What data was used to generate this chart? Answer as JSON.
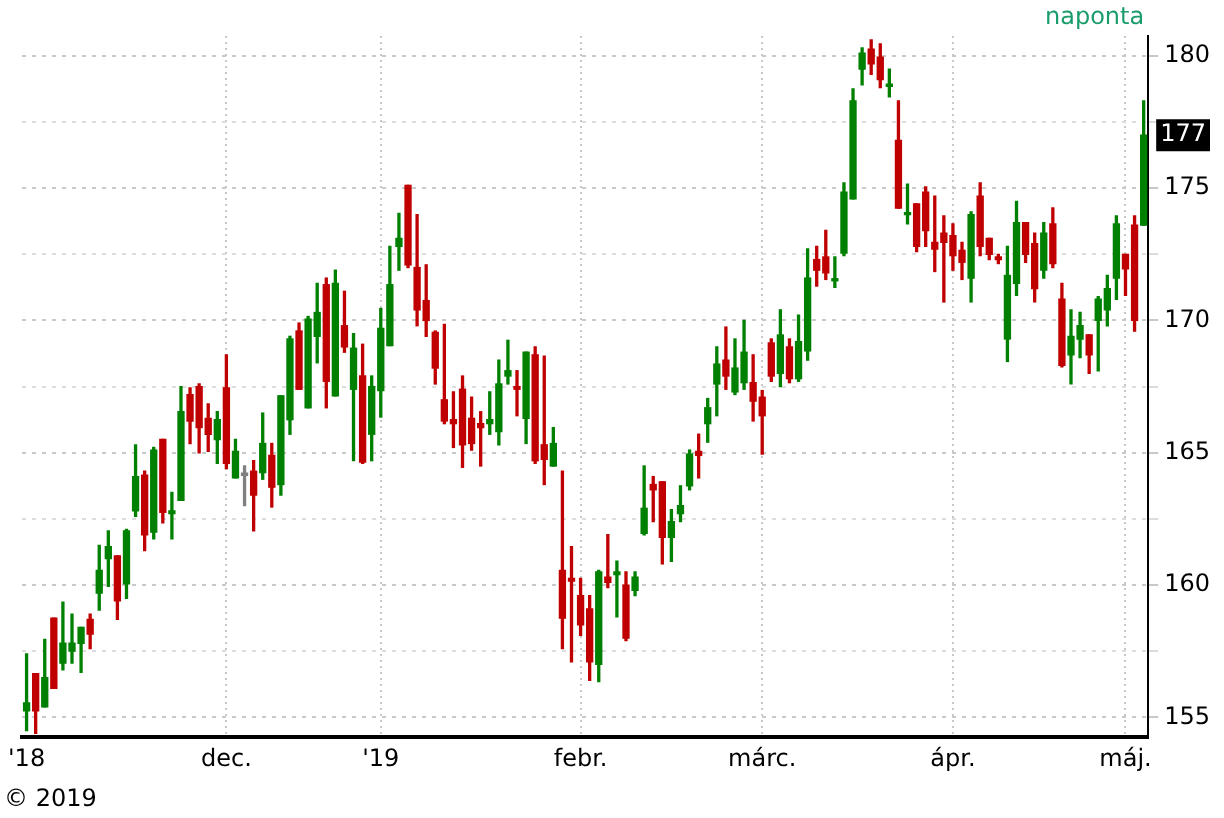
{
  "chart_data": {
    "type": "candlestick",
    "categories": [
      "'18",
      null,
      null,
      null,
      null,
      null,
      null,
      null,
      null,
      null,
      null,
      null,
      null,
      null,
      null,
      null,
      null,
      null,
      null,
      null,
      null,
      null,
      "dec.",
      null,
      null,
      null,
      null,
      null,
      null,
      null,
      null,
      null,
      null,
      null,
      null,
      null,
      null,
      null,
      null,
      "'19",
      null,
      null,
      null,
      null,
      null,
      null,
      null,
      null,
      null,
      null,
      null,
      null,
      null,
      null,
      null,
      null,
      null,
      null,
      null,
      null,
      null,
      "febr.",
      null,
      null,
      null,
      null,
      null,
      null,
      null,
      null,
      null,
      null,
      null,
      null,
      null,
      null,
      null,
      null,
      null,
      null,
      null,
      "márc.",
      null,
      null,
      null,
      null,
      null,
      null,
      null,
      null,
      null,
      null,
      null,
      null,
      null,
      null,
      null,
      null,
      null,
      null,
      null,
      null,
      "ápr.",
      null,
      null,
      null,
      null,
      null,
      null,
      null,
      null,
      null,
      null,
      null,
      null,
      null,
      null,
      null,
      null,
      null,
      null,
      "máj.",
      null,
      null
    ],
    "ohlc": [
      [
        155.25,
        157.4,
        154.5,
        155.55
      ],
      [
        156.65,
        156.65,
        154.4,
        155.25
      ],
      [
        155.4,
        157.95,
        155.4,
        156.5
      ],
      [
        158.75,
        158.75,
        156.1,
        156.1
      ],
      [
        157.05,
        159.35,
        156.8,
        157.8
      ],
      [
        157.5,
        158.9,
        157.05,
        157.8
      ],
      [
        157.8,
        158.4,
        156.7,
        158.4
      ],
      [
        158.7,
        158.9,
        157.6,
        158.15
      ],
      [
        159.7,
        161.5,
        159.05,
        160.55
      ],
      [
        161.0,
        162.05,
        159.95,
        161.45
      ],
      [
        161.1,
        161.1,
        158.7,
        159.4
      ],
      [
        160.05,
        162.1,
        159.5,
        162.05
      ],
      [
        162.8,
        165.3,
        162.6,
        164.1
      ],
      [
        164.15,
        164.3,
        161.3,
        161.9
      ],
      [
        162.0,
        165.2,
        161.75,
        165.1
      ],
      [
        165.5,
        165.5,
        162.35,
        162.75
      ],
      [
        162.7,
        163.5,
        161.75,
        162.8
      ],
      [
        163.2,
        167.5,
        163.2,
        166.55
      ],
      [
        167.2,
        167.45,
        165.35,
        166.2
      ],
      [
        167.5,
        167.6,
        165.0,
        165.95
      ],
      [
        166.3,
        166.85,
        165.05,
        165.7
      ],
      [
        165.5,
        166.55,
        164.6,
        166.25
      ],
      [
        167.45,
        168.7,
        164.4,
        164.6
      ],
      [
        164.05,
        165.5,
        164.05,
        165.05
      ],
      [
        164.15,
        164.5,
        163.0,
        164.15
      ],
      [
        164.3,
        164.7,
        162.05,
        163.4
      ],
      [
        164.25,
        166.5,
        164.0,
        165.35
      ],
      [
        164.9,
        165.35,
        162.95,
        163.7
      ],
      [
        163.8,
        167.15,
        163.4,
        167.15
      ],
      [
        166.25,
        169.4,
        165.7,
        169.3
      ],
      [
        169.6,
        169.9,
        167.4,
        167.4
      ],
      [
        166.7,
        170.15,
        166.7,
        170.05
      ],
      [
        169.4,
        171.4,
        168.4,
        170.3
      ],
      [
        171.35,
        171.6,
        166.7,
        167.7
      ],
      [
        167.15,
        171.9,
        167.15,
        171.4
      ],
      [
        169.8,
        171.1,
        168.8,
        169.0
      ],
      [
        167.4,
        169.5,
        164.7,
        168.95
      ],
      [
        167.9,
        169.1,
        164.6,
        164.65
      ],
      [
        165.7,
        167.9,
        164.7,
        167.5
      ],
      [
        167.35,
        170.45,
        166.35,
        169.7
      ],
      [
        169.05,
        172.8,
        169.05,
        171.35
      ],
      [
        172.8,
        174.05,
        171.9,
        173.1
      ],
      [
        175.1,
        175.1,
        172.0,
        172.1
      ],
      [
        172.0,
        174.0,
        169.8,
        170.4
      ],
      [
        170.75,
        172.1,
        169.4,
        170.0
      ],
      [
        169.55,
        169.6,
        167.6,
        168.2
      ],
      [
        167.0,
        169.85,
        166.1,
        166.2
      ],
      [
        166.25,
        167.3,
        165.2,
        166.1
      ],
      [
        167.4,
        167.9,
        164.45,
        165.3
      ],
      [
        166.3,
        167.1,
        165.1,
        165.35
      ],
      [
        166.1,
        166.55,
        164.5,
        165.95
      ],
      [
        166.1,
        167.3,
        165.7,
        166.25
      ],
      [
        165.8,
        168.5,
        165.3,
        167.6
      ],
      [
        167.9,
        169.25,
        167.6,
        168.1
      ],
      [
        167.5,
        168.1,
        166.4,
        167.4
      ],
      [
        166.3,
        168.8,
        165.35,
        168.8
      ],
      [
        168.7,
        169.0,
        164.6,
        164.7
      ],
      [
        165.3,
        168.65,
        163.8,
        164.75
      ],
      [
        164.5,
        165.95,
        164.5,
        165.35
      ],
      [
        160.55,
        164.3,
        157.6,
        158.75
      ],
      [
        160.25,
        161.45,
        157.1,
        160.15
      ],
      [
        159.6,
        160.25,
        158.1,
        158.5
      ],
      [
        159.1,
        159.6,
        156.4,
        157.1
      ],
      [
        157.0,
        160.55,
        156.35,
        160.5
      ],
      [
        160.3,
        161.9,
        159.9,
        160.1
      ],
      [
        160.4,
        160.9,
        158.8,
        160.5
      ],
      [
        160.0,
        160.5,
        157.9,
        158.0
      ],
      [
        159.8,
        160.5,
        159.6,
        160.3
      ],
      [
        161.95,
        164.5,
        161.9,
        162.9
      ],
      [
        163.8,
        164.1,
        162.4,
        163.6
      ],
      [
        163.9,
        163.9,
        160.8,
        161.8
      ],
      [
        161.8,
        162.85,
        160.9,
        162.4
      ],
      [
        162.7,
        163.75,
        162.4,
        163.0
      ],
      [
        163.75,
        165.1,
        163.6,
        164.95
      ],
      [
        165.05,
        165.7,
        164.05,
        164.9
      ],
      [
        166.1,
        167.05,
        165.4,
        166.7
      ],
      [
        167.6,
        169.0,
        166.4,
        168.35
      ],
      [
        168.5,
        169.75,
        167.4,
        167.9
      ],
      [
        167.3,
        169.3,
        167.2,
        168.2
      ],
      [
        167.65,
        170.0,
        167.4,
        168.8
      ],
      [
        167.65,
        168.7,
        166.2,
        166.95
      ],
      [
        167.1,
        167.35,
        164.95,
        166.4
      ],
      [
        169.15,
        169.3,
        167.7,
        167.9
      ],
      [
        168.0,
        170.4,
        167.5,
        169.45
      ],
      [
        169.0,
        169.3,
        167.65,
        167.8
      ],
      [
        167.8,
        170.2,
        167.7,
        169.2
      ],
      [
        168.85,
        172.7,
        168.5,
        171.6
      ],
      [
        172.3,
        172.8,
        171.3,
        171.9
      ],
      [
        172.4,
        173.4,
        171.55,
        171.8
      ],
      [
        171.5,
        172.4,
        171.25,
        171.55
      ],
      [
        172.55,
        175.2,
        172.45,
        174.85
      ],
      [
        174.6,
        178.75,
        174.6,
        178.3
      ],
      [
        179.5,
        180.3,
        178.9,
        180.1
      ],
      [
        180.25,
        180.6,
        179.3,
        179.7
      ],
      [
        179.95,
        180.45,
        178.8,
        179.1
      ],
      [
        178.85,
        179.5,
        178.45,
        178.9
      ],
      [
        176.8,
        178.3,
        174.25,
        174.25
      ],
      [
        174.0,
        175.15,
        173.65,
        174.05
      ],
      [
        174.4,
        174.4,
        172.6,
        172.8
      ],
      [
        174.85,
        175.05,
        172.8,
        173.4
      ],
      [
        172.95,
        174.7,
        171.85,
        172.7
      ],
      [
        173.3,
        173.95,
        170.7,
        172.95
      ],
      [
        173.2,
        173.65,
        171.9,
        172.45
      ],
      [
        172.65,
        172.95,
        171.55,
        172.2
      ],
      [
        171.6,
        174.1,
        170.7,
        174.0
      ],
      [
        174.7,
        175.2,
        172.45,
        172.8
      ],
      [
        173.1,
        173.1,
        172.3,
        172.5
      ],
      [
        172.4,
        172.5,
        172.15,
        172.3
      ],
      [
        169.3,
        172.8,
        168.45,
        171.7
      ],
      [
        171.4,
        174.5,
        170.95,
        173.7
      ],
      [
        173.7,
        173.7,
        172.2,
        172.5
      ],
      [
        172.9,
        173.3,
        170.7,
        171.2
      ],
      [
        171.9,
        173.7,
        171.6,
        173.3
      ],
      [
        173.65,
        174.25,
        172.0,
        172.15
      ],
      [
        170.8,
        171.4,
        168.25,
        168.3
      ],
      [
        168.7,
        170.4,
        167.6,
        169.4
      ],
      [
        169.3,
        170.3,
        168.6,
        169.8
      ],
      [
        169.45,
        169.45,
        168.0,
        168.7
      ],
      [
        170.0,
        170.9,
        168.1,
        170.8
      ],
      [
        170.4,
        171.7,
        169.8,
        171.2
      ],
      [
        171.6,
        173.95,
        170.8,
        173.65
      ],
      [
        172.5,
        172.5,
        170.95,
        171.95
      ],
      [
        173.6,
        173.95,
        169.6,
        170.0
      ],
      [
        173.6,
        178.3,
        173.6,
        177.0
      ]
    ],
    "colors": [
      "#008000",
      "#c00000",
      "#008000",
      "#c00000",
      "#008000",
      "#008000",
      "#008000",
      "#c00000",
      "#008000",
      "#008000",
      "#c00000",
      "#008000",
      "#008000",
      "#c00000",
      "#008000",
      "#c00000",
      "#008000",
      "#008000",
      "#c00000",
      "#c00000",
      "#c00000",
      "#008000",
      "#c00000",
      "#008000",
      "#808080",
      "#c00000",
      "#008000",
      "#c00000",
      "#008000",
      "#008000",
      "#c00000",
      "#008000",
      "#008000",
      "#c00000",
      "#008000",
      "#c00000",
      "#008000",
      "#c00000",
      "#008000",
      "#008000",
      "#008000",
      "#008000",
      "#c00000",
      "#c00000",
      "#c00000",
      "#c00000",
      "#c00000",
      "#c00000",
      "#c00000",
      "#c00000",
      "#c00000",
      "#008000",
      "#008000",
      "#008000",
      "#c00000",
      "#008000",
      "#c00000",
      "#c00000",
      "#008000",
      "#c00000",
      "#c00000",
      "#c00000",
      "#c00000",
      "#008000",
      "#c00000",
      "#008000",
      "#c00000",
      "#008000",
      "#008000",
      "#c00000",
      "#c00000",
      "#008000",
      "#008000",
      "#008000",
      "#c00000",
      "#008000",
      "#008000",
      "#c00000",
      "#008000",
      "#008000",
      "#c00000",
      "#c00000",
      "#c00000",
      "#008000",
      "#c00000",
      "#008000",
      "#008000",
      "#c00000",
      "#c00000",
      "#008000",
      "#008000",
      "#008000",
      "#008000",
      "#c00000",
      "#c00000",
      "#008000",
      "#c00000",
      "#008000",
      "#c00000",
      "#c00000",
      "#c00000",
      "#c00000",
      "#c00000",
      "#c00000",
      "#008000",
      "#c00000",
      "#c00000",
      "#c00000",
      "#008000",
      "#008000",
      "#c00000",
      "#c00000",
      "#008000",
      "#c00000",
      "#c00000",
      "#008000",
      "#008000",
      "#c00000",
      "#008000",
      "#008000",
      "#008000",
      "#c00000",
      "#c00000",
      "#008000"
    ],
    "ylim": [
      154.25,
      180.75
    ],
    "yticks": [
      155,
      {
        "value": 157.5,
        "label": null
      },
      160,
      {
        "value": 162.5,
        "label": null
      },
      165,
      {
        "value": 167.5,
        "label": null
      },
      170,
      {
        "value": 172.5,
        "label": null
      },
      175,
      {
        "value": 177.5,
        "label": null
      },
      180
    ],
    "grid": true,
    "annotations": [
      "naponta",
      "© 2019",
      "177"
    ]
  }
}
